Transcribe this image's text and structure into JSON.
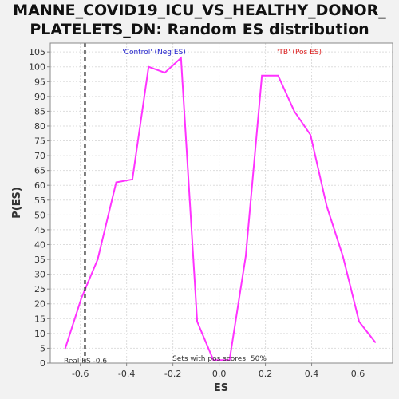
{
  "chart_data": {
    "type": "line",
    "title_lines": [
      "MANNE_COVID19_ICU_VS_HEALTHY_DONOR_",
      "PLATELETS_DN: Random ES distribution"
    ],
    "xlabel": "ES",
    "ylabel": "P(ES)",
    "xlim": [
      -0.73,
      0.75
    ],
    "ylim": [
      0,
      108
    ],
    "x_ticks": [
      -0.6,
      -0.4,
      -0.2,
      0.0,
      0.2,
      0.4,
      0.6
    ],
    "x_tick_labels": [
      "-0.6",
      "-0.4",
      "-0.2",
      "0.0",
      "0.2",
      "0.4",
      "0.6"
    ],
    "y_ticks": [
      0,
      5,
      10,
      15,
      20,
      25,
      30,
      35,
      40,
      45,
      50,
      55,
      60,
      65,
      70,
      75,
      80,
      85,
      90,
      95,
      100,
      105
    ],
    "y_tick_labels": [
      "0",
      "5",
      "10",
      "15",
      "20",
      "25",
      "30",
      "35",
      "40",
      "45",
      "50",
      "55",
      "60",
      "65",
      "70",
      "75",
      "80",
      "85",
      "90",
      "95",
      "100",
      "105"
    ],
    "grid": true,
    "series": [
      {
        "color": "#ff33ff",
        "points": [
          [
            -0.665,
            5
          ],
          [
            -0.595,
            22
          ],
          [
            -0.525,
            35
          ],
          [
            -0.445,
            61
          ],
          [
            -0.375,
            62
          ],
          [
            -0.305,
            100
          ],
          [
            -0.235,
            98
          ],
          [
            -0.165,
            103
          ],
          [
            -0.095,
            14
          ],
          [
            -0.025,
            1
          ],
          [
            0.045,
            1
          ],
          [
            0.115,
            36
          ],
          [
            0.185,
            97
          ],
          [
            0.255,
            97
          ],
          [
            0.325,
            85
          ],
          [
            0.395,
            77
          ],
          [
            0.465,
            53
          ],
          [
            0.535,
            36
          ],
          [
            0.605,
            14
          ],
          [
            0.675,
            7
          ]
        ]
      }
    ],
    "real_es_value": -0.58,
    "real_es_label": "Real ES -0.6",
    "neg_label": "'Control' (Neg ES)",
    "pos_label": "'TB' (Pos ES)",
    "pos_scores_label": "Sets with pos scores: 50%",
    "colors": {
      "series": "#ff33ff",
      "neg_label": "#2222cc",
      "pos_label": "#dd2222",
      "grid": "#dddddd",
      "real_es_line": "#000000"
    }
  }
}
